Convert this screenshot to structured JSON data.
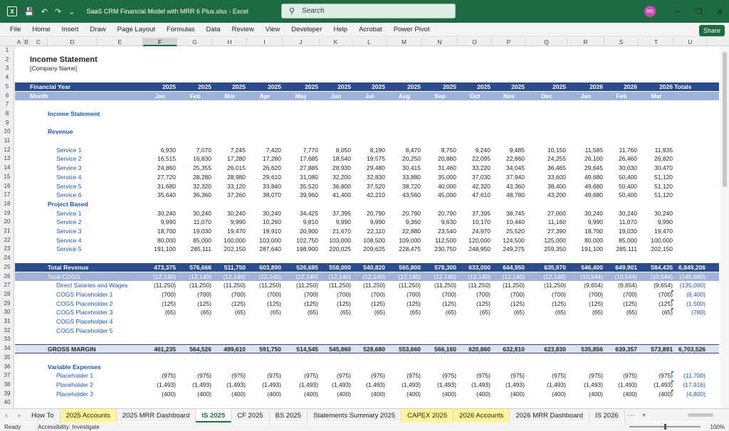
{
  "titlebar": {
    "doc_title": "SaaS CRM Financial Model with MRR 6 Plus.xlsx  -  Excel",
    "search_placeholder": "Search",
    "avatar_initials": "RS"
  },
  "menu": [
    "File",
    "Home",
    "Insert",
    "Draw",
    "Page Layout",
    "Formulas",
    "Data",
    "Review",
    "View",
    "Developer",
    "Help",
    "Acrobat",
    "Power Pivot"
  ],
  "share_label": "Share",
  "columns": [
    "A",
    "B",
    "C",
    "D",
    "E",
    "F",
    "G",
    "H",
    "I",
    "J",
    "K",
    "L",
    "M",
    "N",
    "O",
    "P",
    "Q",
    "R",
    "S",
    "T",
    "U"
  ],
  "selected_column": "F",
  "rows": [
    "1",
    "2",
    "3",
    "4",
    "5",
    "6",
    "7",
    "8",
    "9",
    "10",
    "11",
    "12",
    "13",
    "14",
    "15",
    "16",
    "17",
    "18",
    "19",
    "20",
    "21",
    "22",
    "23",
    "24",
    "25",
    "26",
    "27",
    "28",
    "29",
    "30",
    "31",
    "32",
    "33",
    "34",
    "35",
    "36",
    "37",
    "38",
    "39",
    "40"
  ],
  "sheet": {
    "title": "Income Statement",
    "company": "[Company Name]",
    "fy_label": "Financial Year",
    "month_label": "Month",
    "years": [
      "2025",
      "2025",
      "2025",
      "2025",
      "2025",
      "2025",
      "2025",
      "2025",
      "2025",
      "2025",
      "2025",
      "2025",
      "2026",
      "2026",
      "2026"
    ],
    "totals_label": "Totals",
    "months": [
      "Jan",
      "Feb",
      "Mar",
      "Apr",
      "May",
      "Jun",
      "Jul",
      "Aug",
      "Sep",
      "Oct",
      "Nov",
      "Dec",
      "Jan",
      "Feb",
      "Mar"
    ],
    "section_income": "Income Statement",
    "section_revenue": "Revenue",
    "services": [
      {
        "label": "Service 1",
        "values": [
          "6,930",
          "7,070",
          "7,245",
          "7,420",
          "7,770",
          "8,050",
          "8,190",
          "8,470",
          "8,750",
          "9,240",
          "9,485",
          "10,150",
          "11,585",
          "11,760",
          "11,935"
        ]
      },
      {
        "label": "Service 2",
        "values": [
          "16,515",
          "16,830",
          "17,280",
          "17,280",
          "17,685",
          "18,540",
          "19,575",
          "20,250",
          "20,880",
          "22,095",
          "22,860",
          "24,255",
          "26,100",
          "26,460",
          "26,820"
        ]
      },
      {
        "label": "Service 3",
        "values": [
          "24,860",
          "25,355",
          "26,015",
          "26,620",
          "27,885",
          "28,930",
          "29,480",
          "30,415",
          "31,460",
          "33,220",
          "34,045",
          "36,465",
          "29,645",
          "30,030",
          "30,470"
        ]
      },
      {
        "label": "Service 4",
        "values": [
          "27,720",
          "28,280",
          "28,980",
          "29,610",
          "31,080",
          "32,200",
          "32,830",
          "33,880",
          "35,000",
          "37,030",
          "37,940",
          "33,600",
          "49,680",
          "50,400",
          "51,120"
        ]
      },
      {
        "label": "Service 5",
        "values": [
          "31,680",
          "32,320",
          "33,120",
          "33,840",
          "35,520",
          "36,800",
          "37,520",
          "38,720",
          "40,000",
          "42,320",
          "43,360",
          "38,400",
          "49,680",
          "50,400",
          "51,120"
        ]
      },
      {
        "label": "Service 6",
        "values": [
          "35,640",
          "36,360",
          "37,260",
          "38,070",
          "39,960",
          "41,400",
          "42,210",
          "43,560",
          "45,000",
          "47,610",
          "48,780",
          "43,200",
          "49,680",
          "50,400",
          "51,120"
        ]
      }
    ],
    "project_based_label": "Project Based",
    "projects": [
      {
        "label": "Service 1",
        "values": [
          "30,240",
          "30,240",
          "30,240",
          "30,240",
          "34,425",
          "37,395",
          "20,790",
          "20,790",
          "20,790",
          "37,395",
          "38,745",
          "27,000",
          "30,240",
          "30,240",
          "30,240"
        ]
      },
      {
        "label": "Service 2",
        "values": [
          "9,990",
          "11,070",
          "9,990",
          "10,260",
          "9,810",
          "9,990",
          "9,990",
          "9,360",
          "9,630",
          "10,170",
          "10,440",
          "11,160",
          "9,990",
          "11,070",
          "9,990"
        ]
      },
      {
        "label": "Service 3",
        "values": [
          "18,700",
          "19,030",
          "19,470",
          "19,910",
          "20,900",
          "21,670",
          "22,110",
          "22,880",
          "23,540",
          "24,970",
          "25,520",
          "27,390",
          "18,700",
          "19,030",
          "19,470"
        ]
      },
      {
        "label": "Service 4",
        "values": [
          "80,000",
          "85,000",
          "100,000",
          "103,000",
          "102,750",
          "103,000",
          "108,500",
          "109,000",
          "112,500",
          "120,000",
          "124,500",
          "125,000",
          "80,000",
          "85,000",
          "100,000"
        ]
      },
      {
        "label": "Service 5",
        "values": [
          "191,100",
          "285,111",
          "202,150",
          "287,640",
          "198,900",
          "220,025",
          "209,625",
          "228,475",
          "230,750",
          "248,950",
          "249,275",
          "259,350",
          "191,100",
          "285,111",
          "202,150"
        ]
      }
    ],
    "total_revenue": {
      "label": "Total Revenue",
      "values": [
        "473,375",
        "576,666",
        "511,750",
        "603,890",
        "526,685",
        "558,000",
        "540,820",
        "565,800",
        "578,300",
        "633,000",
        "644,950",
        "635,970",
        "546,400",
        "649,901",
        "584,435"
      ],
      "total": "6,849,206"
    },
    "total_cogs": {
      "label": "Total COGS",
      "values": [
        "(12,140)",
        "(12,140)",
        "(12,140)",
        "(12,140)",
        "(12,140)",
        "(12,140)",
        "(12,140)",
        "(12,140)",
        "(12,140)",
        "(12,140)",
        "(12,140)",
        "(12,140)",
        "(10,544)",
        "(10,544)",
        "(10,544)"
      ],
      "total": "(145,680)"
    },
    "cogs": [
      {
        "label": "Direct Salaries and Wages",
        "values": [
          "(11,250)",
          "(11,250)",
          "(11,250)",
          "(11,250)",
          "(11,250)",
          "(11,250)",
          "(11,250)",
          "(11,250)",
          "(11,250)",
          "(11,250)",
          "(11,250)",
          "(11,250)",
          "(9,654)",
          "(9,654)",
          "(9,654)"
        ],
        "total": "(135,000)"
      },
      {
        "label": "COGS Placeholder 1",
        "values": [
          "(700)",
          "(700)",
          "(700)",
          "(700)",
          "(700)",
          "(700)",
          "(700)",
          "(700)",
          "(700)",
          "(700)",
          "(700)",
          "(700)",
          "(700)",
          "(700)",
          "(700)"
        ],
        "total": "(8,400)"
      },
      {
        "label": "COGS Placeholder 2",
        "values": [
          "(125)",
          "(125)",
          "(125)",
          "(125)",
          "(125)",
          "(125)",
          "(125)",
          "(125)",
          "(125)",
          "(125)",
          "(125)",
          "(125)",
          "(125)",
          "(125)",
          "(125)"
        ],
        "total": "(1,500)"
      },
      {
        "label": "COGS Placeholder 3",
        "values": [
          "(65)",
          "(65)",
          "(65)",
          "(65)",
          "(65)",
          "(65)",
          "(65)",
          "(65)",
          "(65)",
          "(65)",
          "(65)",
          "(65)",
          "(65)",
          "(65)",
          "(65)"
        ],
        "total": "(780)"
      },
      {
        "label": "COGS Placeholder 4",
        "values": [
          "",
          "",
          "",
          "",
          "",
          "",
          "",
          "",
          "",
          "",
          "",
          "",
          "",
          "",
          ""
        ],
        "total": ""
      },
      {
        "label": "COGS Placeholder 5",
        "values": [
          "",
          "",
          "",
          "",
          "",
          "",
          "",
          "",
          "",
          "",
          "",
          "",
          "",
          "",
          ""
        ],
        "total": ""
      }
    ],
    "gross_margin": {
      "label": "GROSS MARGIN",
      "values": [
        "461,235",
        "564,526",
        "499,610",
        "591,750",
        "514,545",
        "545,860",
        "528,680",
        "553,660",
        "566,160",
        "620,860",
        "632,810",
        "623,830",
        "535,856",
        "639,357",
        "573,891"
      ],
      "total": "6,703,526"
    },
    "variable_expenses_label": "Variable Expenses",
    "variable": [
      {
        "label": "Placeholder 1",
        "values": [
          "(975)",
          "(975)",
          "(975)",
          "(975)",
          "(975)",
          "(975)",
          "(975)",
          "(975)",
          "(975)",
          "(975)",
          "(975)",
          "(975)",
          "(975)",
          "(975)",
          "(975)"
        ],
        "total": "(11,700)"
      },
      {
        "label": "Placeholder 2",
        "values": [
          "(1,493)",
          "(1,493)",
          "(1,493)",
          "(1,493)",
          "(1,493)",
          "(1,493)",
          "(1,493)",
          "(1,493)",
          "(1,493)",
          "(1,493)",
          "(1,493)",
          "(1,493)",
          "(1,493)",
          "(1,493)",
          "(1,493)"
        ],
        "total": "(17,916)"
      },
      {
        "label": "Placeholder 3",
        "values": [
          "(400)",
          "(400)",
          "(400)",
          "(400)",
          "(400)",
          "(400)",
          "(400)",
          "(400)",
          "(400)",
          "(400)",
          "(400)",
          "(400)",
          "(400)",
          "(400)",
          "(400)"
        ],
        "total": "(4,800)"
      }
    ]
  },
  "tabs": [
    {
      "label": "How To",
      "style": "normal"
    },
    {
      "label": "2025 Accounts",
      "style": "yellow"
    },
    {
      "label": "2025 MRR Dashboard",
      "style": "normal"
    },
    {
      "label": "IS 2025",
      "style": "active"
    },
    {
      "label": "CF 2025",
      "style": "normal"
    },
    {
      "label": "BS 2025",
      "style": "normal"
    },
    {
      "label": "Statements Summary 2025",
      "style": "normal"
    },
    {
      "label": "CAPEX 2025",
      "style": "yellow"
    },
    {
      "label": "2026 Accounts",
      "style": "yellow"
    },
    {
      "label": "2026 MRR Dashboard",
      "style": "normal"
    },
    {
      "label": "IS 2026",
      "style": "normal"
    }
  ],
  "status": {
    "ready": "Ready",
    "accessibility": "Accessibility: Investigate",
    "zoom": "100%"
  }
}
